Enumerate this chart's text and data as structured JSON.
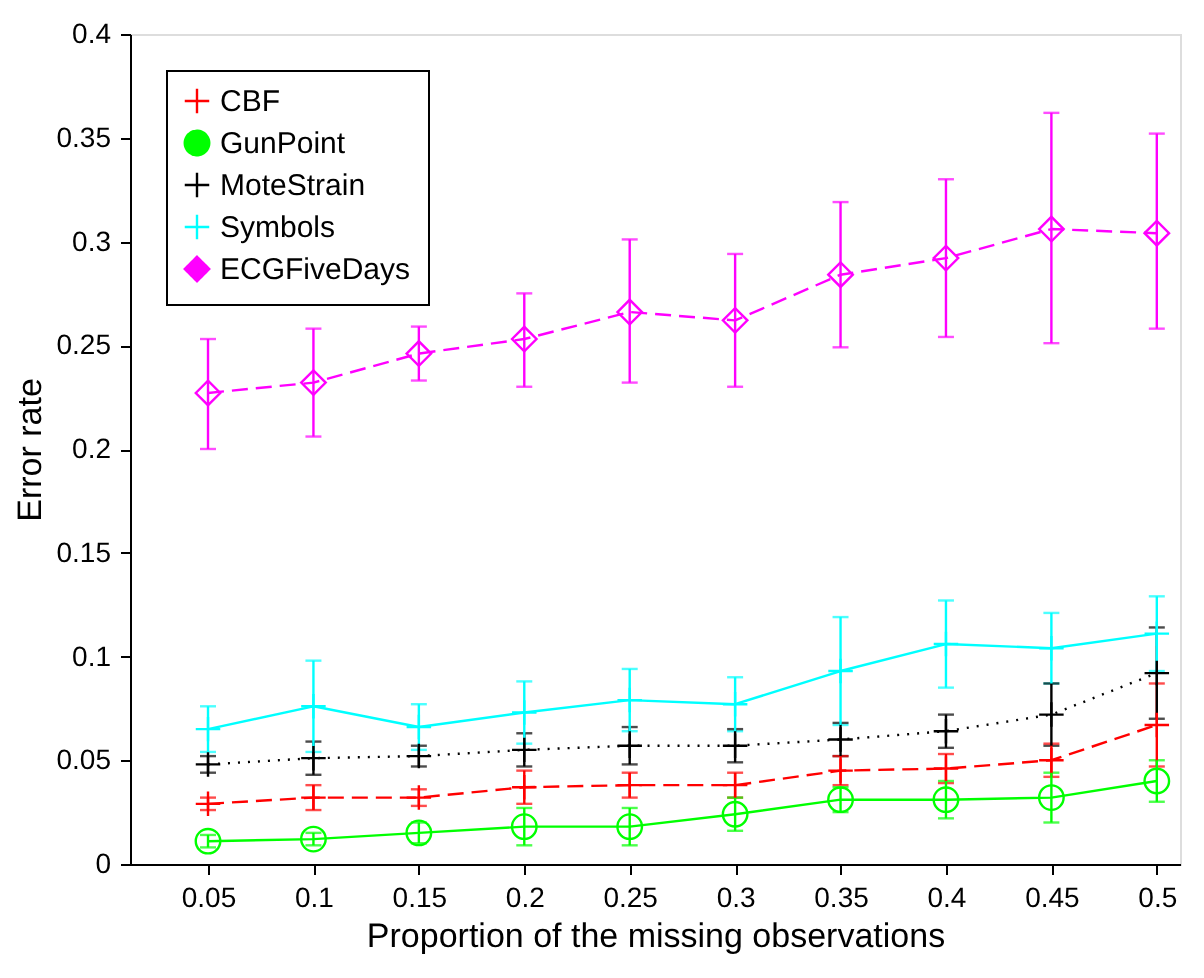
{
  "chart_data": {
    "type": "line",
    "xlabel": "Proportion of the missing observations",
    "ylabel": "Error rate",
    "x": [
      0.05,
      0.1,
      0.15,
      0.2,
      0.25,
      0.3,
      0.35,
      0.4,
      0.45,
      0.5
    ],
    "xlim": [
      0.013,
      0.511
    ],
    "xticks": [
      0.05,
      0.1,
      0.15,
      0.2,
      0.25,
      0.3,
      0.35,
      0.4,
      0.45,
      0.5
    ],
    "ylim": [
      0,
      0.4
    ],
    "yticks": [
      0,
      0.05,
      0.1,
      0.15,
      0.2,
      0.25,
      0.3,
      0.35,
      0.4
    ],
    "legend": "top left",
    "grid": false,
    "series": [
      {
        "name": "CBF",
        "color": "#ff0000",
        "line_style": "dashed",
        "marker": "cross",
        "values": [
          0.029,
          0.032,
          0.032,
          0.037,
          0.038,
          0.038,
          0.045,
          0.046,
          0.05,
          0.067
        ],
        "errors": [
          0.003,
          0.006,
          0.004,
          0.008,
          0.006,
          0.006,
          0.007,
          0.007,
          0.008,
          0.02
        ]
      },
      {
        "name": "GunPoint",
        "color": "#00ff00",
        "line_style": "solid",
        "marker": "circle",
        "values": [
          0.011,
          0.012,
          0.015,
          0.018,
          0.018,
          0.024,
          0.031,
          0.031,
          0.032,
          0.04
        ],
        "errors": [
          0.003,
          0.003,
          0.005,
          0.009,
          0.009,
          0.008,
          0.006,
          0.009,
          0.012,
          0.01
        ]
      },
      {
        "name": "MoteStrain",
        "color": "#000000",
        "line_style": "dotted",
        "marker": "cross",
        "values": [
          0.048,
          0.051,
          0.052,
          0.055,
          0.057,
          0.057,
          0.06,
          0.064,
          0.072,
          0.092
        ],
        "errors": [
          0.004,
          0.008,
          0.005,
          0.008,
          0.009,
          0.008,
          0.008,
          0.008,
          0.015,
          0.022
        ]
      },
      {
        "name": "Symbols",
        "color": "#00ffff",
        "line_style": "solid",
        "marker": "cross",
        "values": [
          0.065,
          0.076,
          0.066,
          0.073,
          0.079,
          0.077,
          0.093,
          0.106,
          0.104,
          0.111
        ],
        "errors": [
          0.011,
          0.022,
          0.011,
          0.015,
          0.015,
          0.013,
          0.026,
          0.021,
          0.017,
          0.018
        ]
      },
      {
        "name": "ECGFiveDays",
        "color": "#ff00ff",
        "line_style": "dashed",
        "marker": "diamond",
        "values": [
          0.227,
          0.232,
          0.246,
          0.253,
          0.266,
          0.262,
          0.284,
          0.292,
          0.306,
          0.304
        ],
        "errors": [
          [
            0.2,
            0.253
          ],
          [
            0.206,
            0.258
          ],
          [
            0.233,
            0.259
          ],
          [
            0.23,
            0.275
          ],
          [
            0.232,
            0.301
          ],
          [
            0.23,
            0.294
          ],
          [
            0.249,
            0.319
          ],
          [
            0.254,
            0.33
          ],
          [
            0.251,
            0.362
          ],
          [
            0.258,
            0.352
          ]
        ]
      }
    ]
  }
}
